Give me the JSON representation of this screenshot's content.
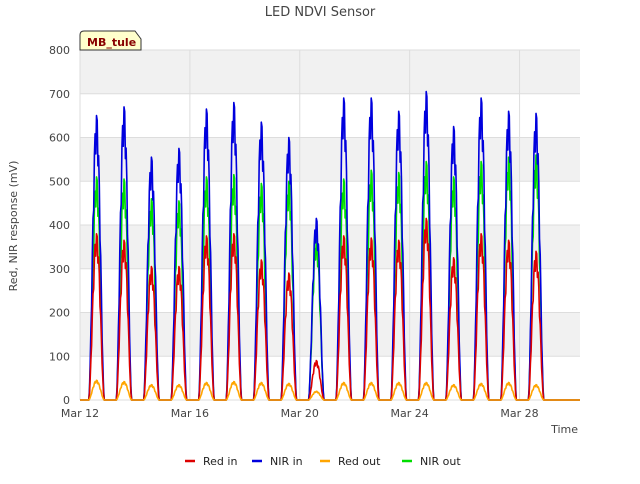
{
  "chart_data": {
    "type": "line",
    "title": "LED NDVI Sensor",
    "site_badge": "MB_tule",
    "xlabel": "Time",
    "ylabel": "Red, NIR response (mV)",
    "ylim": [
      0,
      800
    ],
    "yticks": [
      0,
      100,
      200,
      300,
      400,
      500,
      600,
      700,
      800
    ],
    "x_unit": "day of March",
    "xlim": [
      12.0,
      30.2
    ],
    "xticks": [
      {
        "x": 12,
        "label": "Mar 12"
      },
      {
        "x": 16,
        "label": "Mar 16"
      },
      {
        "x": 20,
        "label": "Mar 20"
      },
      {
        "x": 24,
        "label": "Mar 24"
      },
      {
        "x": 28,
        "label": "Mar 28"
      }
    ],
    "grid": true,
    "background_bands": true,
    "legend_position": "bottom",
    "series": [
      {
        "name": "Red in",
        "color": "#dd0000",
        "daily_peak_x": [
          12.6,
          13.6,
          14.6,
          15.6,
          16.6,
          17.6,
          18.6,
          19.6,
          20.6,
          21.6,
          22.6,
          23.6,
          24.6,
          25.6,
          26.6,
          27.6,
          28.6
        ],
        "daily_peak": [
          380,
          365,
          305,
          305,
          375,
          380,
          320,
          290,
          90,
          375,
          370,
          365,
          415,
          325,
          380,
          365,
          340
        ]
      },
      {
        "name": "NIR in",
        "color": "#0000dd",
        "daily_peak_x": [
          12.6,
          13.6,
          14.6,
          15.6,
          16.6,
          17.6,
          18.6,
          19.6,
          20.6,
          21.6,
          22.6,
          23.6,
          24.6,
          25.6,
          26.6,
          27.6,
          28.6
        ],
        "daily_peak": [
          650,
          670,
          555,
          575,
          665,
          680,
          635,
          600,
          415,
          690,
          690,
          660,
          705,
          625,
          690,
          660,
          655
        ]
      },
      {
        "name": "Red out",
        "color": "#ffa500",
        "daily_peak_x": [
          12.6,
          13.6,
          14.6,
          15.6,
          16.6,
          17.6,
          18.6,
          19.6,
          20.6,
          21.6,
          22.6,
          23.6,
          24.6,
          25.6,
          26.6,
          27.6,
          28.6
        ],
        "daily_peak": [
          45,
          42,
          35,
          35,
          40,
          42,
          40,
          38,
          20,
          40,
          40,
          40,
          40,
          35,
          38,
          40,
          35
        ]
      },
      {
        "name": "NIR out",
        "color": "#00dd00",
        "daily_peak_x": [
          12.6,
          13.6,
          14.6,
          15.6,
          16.6,
          17.6,
          18.6,
          19.6,
          20.6,
          21.6,
          22.6,
          23.6,
          24.6,
          25.6,
          26.6,
          27.6,
          28.6
        ],
        "daily_peak": [
          510,
          505,
          460,
          455,
          510,
          515,
          495,
          500,
          370,
          505,
          525,
          520,
          545,
          510,
          545,
          555,
          560
        ]
      }
    ]
  }
}
